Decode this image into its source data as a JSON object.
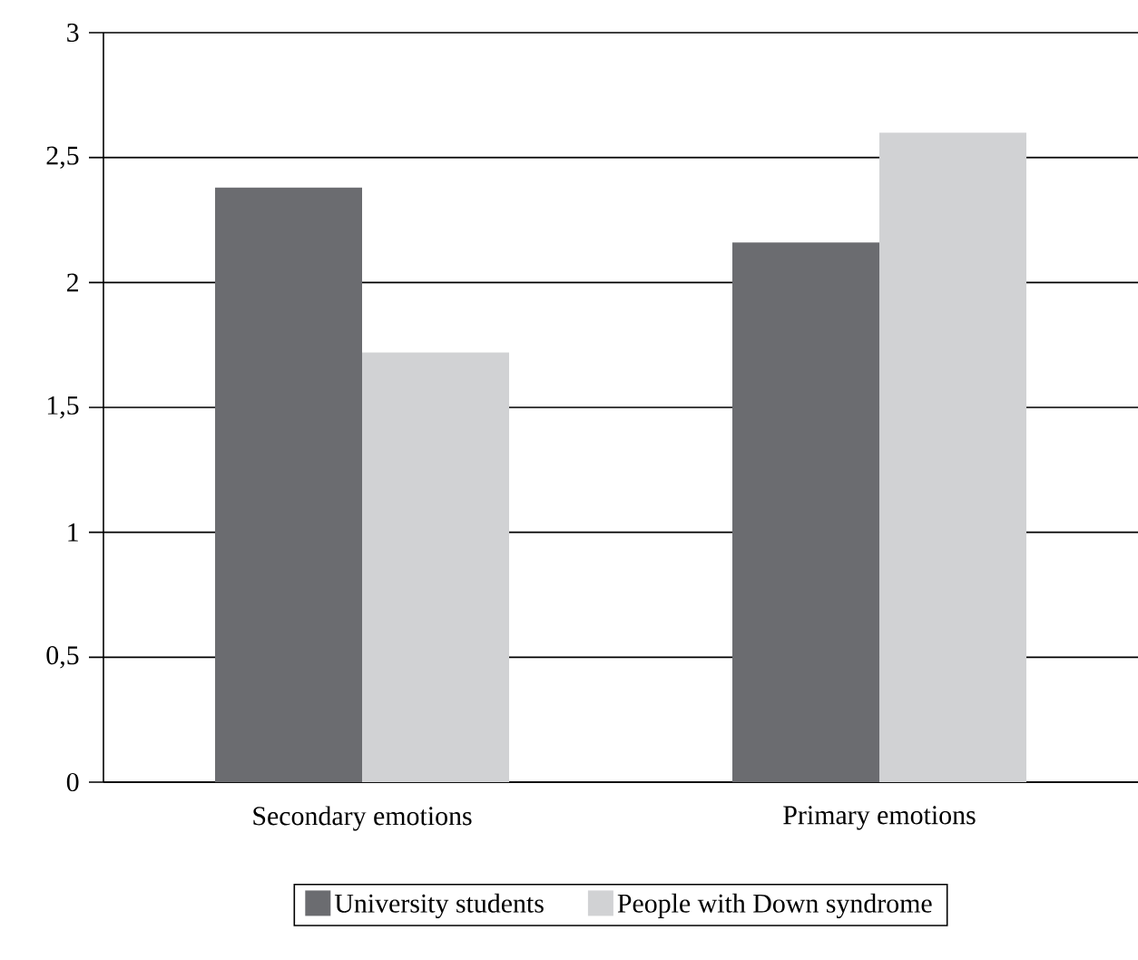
{
  "chart_data": {
    "type": "bar",
    "categories": [
      "Secondary emotions",
      "Primary emotions"
    ],
    "series": [
      {
        "name": "University students",
        "color": "#6b6c70",
        "values": [
          2.38,
          2.16
        ]
      },
      {
        "name": "People with Down syndrome",
        "color": "#d1d2d4",
        "values": [
          1.72,
          2.6
        ]
      }
    ],
    "ylim": [
      0,
      3
    ],
    "yticks": [
      0,
      {
        "value": 0.5,
        "label": "0,5"
      },
      1,
      {
        "value": 1.5,
        "label": "1,5"
      },
      2,
      {
        "value": 2.5,
        "label": "2,5"
      },
      3
    ],
    "grid": "y",
    "legend": "bottom"
  }
}
